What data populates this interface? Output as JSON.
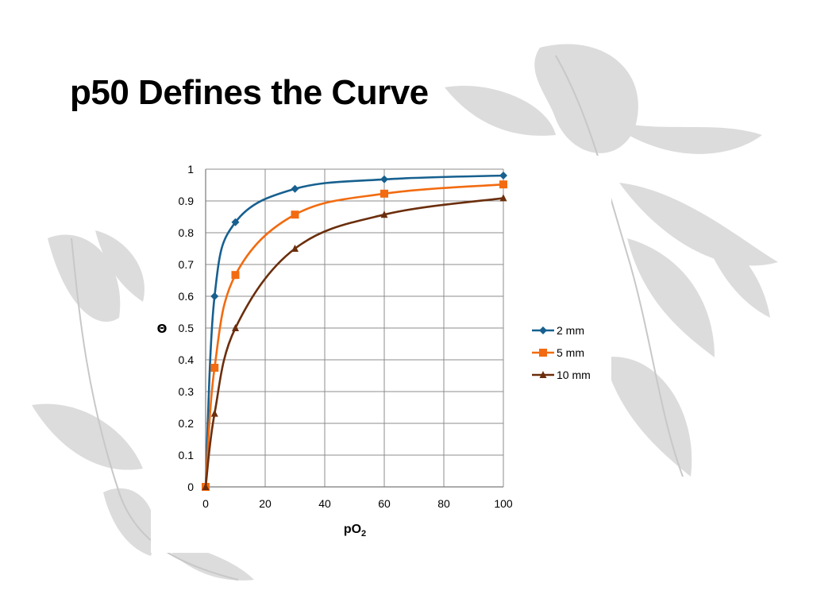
{
  "slide": {
    "title": "p50 Defines the Curve"
  },
  "chart_data": {
    "type": "line",
    "title": "",
    "xlabel": "pO2",
    "ylabel": "Θ",
    "xlim": [
      0,
      100
    ],
    "ylim": [
      0,
      1
    ],
    "x_ticks": [
      0,
      20,
      40,
      60,
      80,
      100
    ],
    "y_ticks": [
      0,
      0.1,
      0.2,
      0.3,
      0.4,
      0.5,
      0.6,
      0.7,
      0.8,
      0.9,
      1
    ],
    "grid": true,
    "legend_position": "right",
    "series": [
      {
        "name": "2 mm",
        "color": "#17608F",
        "marker": "diamond",
        "x": [
          0,
          3,
          10,
          30,
          60,
          100
        ],
        "y": [
          0,
          0.6,
          0.833,
          0.938,
          0.968,
          0.98
        ]
      },
      {
        "name": "5 mm",
        "color": "#F26B10",
        "marker": "square",
        "x": [
          0,
          3,
          10,
          30,
          60,
          100
        ],
        "y": [
          0,
          0.375,
          0.667,
          0.857,
          0.923,
          0.952
        ]
      },
      {
        "name": "10 mm",
        "color": "#6B2E0C",
        "marker": "triangle",
        "x": [
          0,
          3,
          10,
          30,
          60,
          100
        ],
        "y": [
          0,
          0.231,
          0.5,
          0.75,
          0.857,
          0.909
        ]
      }
    ]
  }
}
